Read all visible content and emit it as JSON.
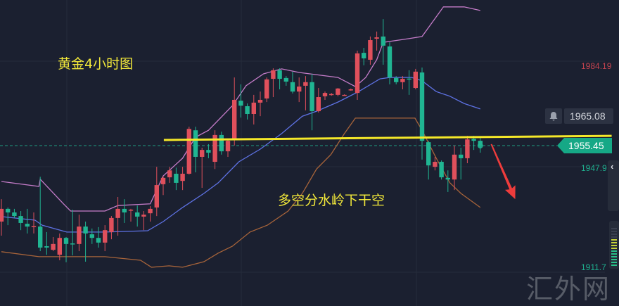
{
  "chart_data": {
    "type": "candlestick",
    "title": "黄金4小时图",
    "annotation_text": "多空分水岭下干空",
    "colors": {
      "up": "#e0505c",
      "down": "#20b592",
      "upper_band": "#c57cc9",
      "middle_band": "#5e72e4",
      "lower_band": "#a8643a",
      "support_line": "#f5e829",
      "arrow": "#ee3c3c",
      "background": "#1b2030"
    },
    "candles": [
      [
        1928.0,
        1936.1,
        1922.9,
        1932.6
      ],
      [
        1932.6,
        1933.1,
        1926.7,
        1931.3
      ],
      [
        1931.3,
        1932.6,
        1929.3,
        1930.0
      ],
      [
        1930.0,
        1931.8,
        1924.9,
        1927.5
      ],
      [
        1927.2,
        1932.6,
        1923.7,
        1926.2
      ],
      [
        1926.2,
        1931.3,
        1923.7,
        1926.4
      ],
      [
        1926.2,
        1944.2,
        1917.3,
        1918.6
      ],
      [
        1919.1,
        1924.2,
        1916.0,
        1918.6
      ],
      [
        1917.8,
        1922.4,
        1917.3,
        1919.9
      ],
      [
        1916.0,
        1923.7,
        1914.0,
        1922.1
      ],
      [
        1922.1,
        1922.4,
        1913.3,
        1919.9
      ],
      [
        1920.1,
        1932.3,
        1915.8,
        1920.0
      ],
      [
        1919.9,
        1930.5,
        1917.3,
        1926.2
      ],
      [
        1926.2,
        1928.0,
        1913.5,
        1923.7
      ],
      [
        1923.4,
        1925.5,
        1919.9,
        1922.1
      ],
      [
        1922.1,
        1926.0,
        1918.6,
        1920.4
      ],
      [
        1920.4,
        1926.7,
        1917.3,
        1924.9
      ],
      [
        1924.2,
        1930.0,
        1921.6,
        1929.3
      ],
      [
        1929.3,
        1936.9,
        1922.9,
        1932.6
      ],
      [
        1932.6,
        1936.1,
        1927.5,
        1931.3
      ],
      [
        1932.0,
        1932.6,
        1928.0,
        1932.3
      ],
      [
        1931.3,
        1933.8,
        1926.2,
        1929.8
      ],
      [
        1929.8,
        1931.8,
        1924.9,
        1930.5
      ],
      [
        1931.0,
        1933.6,
        1928.0,
        1932.6
      ],
      [
        1933.1,
        1947.8,
        1930.0,
        1941.2
      ],
      [
        1941.5,
        1944.5,
        1937.6,
        1943.8
      ],
      [
        1944.0,
        1947.8,
        1942.0,
        1946.5
      ],
      [
        1945.3,
        1947.5,
        1939.4,
        1942.0
      ],
      [
        1942.7,
        1947.8,
        1939.4,
        1945.3
      ],
      [
        1945.3,
        1962.3,
        1945.0,
        1961.5
      ],
      [
        1961.0,
        1962.3,
        1945.8,
        1951.4
      ],
      [
        1951.4,
        1954.7,
        1940.2,
        1953.9
      ],
      [
        1953.9,
        1956.0,
        1950.9,
        1952.9
      ],
      [
        1949.6,
        1961.0,
        1947.0,
        1959.3
      ],
      [
        1959.3,
        1960.5,
        1952.2,
        1953.4
      ],
      [
        1953.4,
        1958.0,
        1951.4,
        1957.2
      ],
      [
        1958.0,
        1980.1,
        1955.5,
        1972.0
      ],
      [
        1971.7,
        1977.6,
        1965.6,
        1969.9
      ],
      [
        1969.7,
        1970.7,
        1964.9,
        1966.9
      ],
      [
        1966.9,
        1973.8,
        1963.1,
        1971.0
      ],
      [
        1971.0,
        1975.0,
        1966.1,
        1972.0
      ],
      [
        1972.5,
        1980.1,
        1971.2,
        1979.4
      ],
      [
        1979.6,
        1983.4,
        1973.0,
        1982.7
      ],
      [
        1982.7,
        1983.4,
        1975.8,
        1979.6
      ],
      [
        1979.9,
        1980.6,
        1977.1,
        1978.6
      ],
      [
        1978.4,
        1982.2,
        1974.3,
        1975.0
      ],
      [
        1975.0,
        1980.1,
        1971.2,
        1976.8
      ],
      [
        1977.1,
        1980.6,
        1968.2,
        1978.4
      ],
      [
        1978.4,
        1981.4,
        1961.0,
        1967.9
      ],
      [
        1967.9,
        1976.3,
        1967.4,
        1973.0
      ],
      [
        1973.3,
        1975.0,
        1972.0,
        1974.5
      ],
      [
        1973.9,
        1974.5,
        1973.5,
        1974.1
      ],
      [
        1973.8,
        1976.3,
        1973.3,
        1976.1
      ],
      [
        1973.8,
        1974.0,
        1973.5,
        1973.8
      ],
      [
        1975.6,
        1976.1,
        1975.3,
        1975.8
      ],
      [
        1974.5,
        1989.8,
        1972.0,
        1988.8
      ],
      [
        1989.0,
        1990.8,
        1984.5,
        1987.0
      ],
      [
        1986.5,
        1994.9,
        1984.7,
        1993.6
      ],
      [
        1994.1,
        1996.7,
        1989.8,
        1994.6
      ],
      [
        1994.9,
        2001.2,
        1984.7,
        1991.6
      ],
      [
        1991.3,
        1992.8,
        1977.6,
        1980.1
      ],
      [
        1979.9,
        1980.6,
        1977.6,
        1978.4
      ],
      [
        1978.4,
        1980.6,
        1975.8,
        1979.6
      ],
      [
        1979.7,
        1982.7,
        1973.8,
        1979.6
      ],
      [
        1976.3,
        1983.2,
        1975.8,
        1982.2
      ],
      [
        1981.9,
        1983.7,
        1950.4,
        1957.2
      ],
      [
        1956.7,
        1957.2,
        1943.2,
        1948.3
      ],
      [
        1947.8,
        1951.4,
        1946.5,
        1949.6
      ],
      [
        1949.6,
        1950.1,
        1943.2,
        1944.0
      ],
      [
        1943.8,
        1946.5,
        1938.7,
        1943.2
      ],
      [
        1943.2,
        1955.5,
        1939.4,
        1952.2
      ],
      [
        1952.2,
        1954.7,
        1943.2,
        1950.9
      ],
      [
        1950.9,
        1959.0,
        1949.1,
        1957.7
      ],
      [
        1957.9,
        1959.0,
        1953.9,
        1957.2
      ],
      [
        1957.2,
        1958.2,
        1952.9,
        1955.45
      ]
    ],
    "bands": {
      "upper": [
        [
          1,
          1942.5
        ],
        [
          6.8,
          1940.7
        ],
        [
          7,
          1943.3
        ],
        [
          10.6,
          1934.4
        ],
        [
          11.7,
          1931.8
        ],
        [
          17,
          1931.8
        ],
        [
          19,
          1933.8
        ],
        [
          24,
          1934.4
        ],
        [
          26,
          1944.5
        ],
        [
          29,
          1950.9
        ],
        [
          31,
          1958.5
        ],
        [
          33,
          1961.0
        ],
        [
          36.7,
          1969.9
        ],
        [
          38.8,
          1977.1
        ],
        [
          41.5,
          1981.4
        ],
        [
          44.3,
          1983.2
        ],
        [
          47,
          1981.9
        ],
        [
          53,
          1980.1
        ],
        [
          55.7,
          1976.8
        ],
        [
          57.3,
          1980.1
        ],
        [
          59,
          1986.5
        ],
        [
          60,
          1992.8
        ],
        [
          63.8,
          1994.1
        ],
        [
          66,
          1994.9
        ],
        [
          69.3,
          2005.6
        ],
        [
          72.5,
          2005.6
        ],
        [
          75,
          2004.3
        ]
      ],
      "middle": [
        [
          1,
          1929.8
        ],
        [
          6.2,
          1928.5
        ],
        [
          7.3,
          1926.7
        ],
        [
          11.1,
          1924.2
        ],
        [
          17,
          1924.2
        ],
        [
          23.6,
          1924.7
        ],
        [
          26,
          1928.0
        ],
        [
          29,
          1933.1
        ],
        [
          32.3,
          1938.2
        ],
        [
          34.5,
          1942.0
        ],
        [
          37.7,
          1949.6
        ],
        [
          41,
          1954.2
        ],
        [
          44.3,
          1959.8
        ],
        [
          47.5,
          1966.1
        ],
        [
          49.7,
          1967.9
        ],
        [
          53,
          1971.2
        ],
        [
          56.2,
          1975.0
        ],
        [
          59.5,
          1979.6
        ],
        [
          61,
          1980.1
        ],
        [
          64.4,
          1980.1
        ],
        [
          66,
          1978.9
        ],
        [
          68.2,
          1975.0
        ],
        [
          70.3,
          1973.3
        ],
        [
          72.5,
          1970.7
        ],
        [
          75,
          1968.7
        ]
      ],
      "lower": [
        [
          1,
          1917.1
        ],
        [
          6.8,
          1915.3
        ],
        [
          17,
          1915.3
        ],
        [
          22.5,
          1914.0
        ],
        [
          24.2,
          1911.5
        ],
        [
          26.9,
          1912.0
        ],
        [
          29,
          1911.5
        ],
        [
          32.3,
          1913.5
        ],
        [
          34.5,
          1916.6
        ],
        [
          36.7,
          1919.1
        ],
        [
          39.4,
          1924.2
        ],
        [
          42.1,
          1926.7
        ],
        [
          45.3,
          1931.8
        ],
        [
          47.5,
          1938.2
        ],
        [
          49.7,
          1947.0
        ],
        [
          51.9,
          1952.2
        ],
        [
          54,
          1959.8
        ],
        [
          55.7,
          1965.4
        ],
        [
          59.5,
          1965.4
        ],
        [
          64.9,
          1965.4
        ],
        [
          66,
          1961.0
        ],
        [
          68.2,
          1950.9
        ],
        [
          70.3,
          1942.0
        ],
        [
          72,
          1938.2
        ],
        [
          75,
          1933.1
        ]
      ]
    },
    "support_line": {
      "from": [
        26.1,
        1957.5
      ],
      "to": [
        95.3,
        1959.0
      ]
    },
    "arrow": {
      "from": [
        76.7,
        1956.0
      ],
      "to": [
        80.4,
        1936.1
      ]
    },
    "last_price": 1955.45,
    "y_labels": {
      "high": "1984.19",
      "alert": "1965.08",
      "last": "1955.45",
      "mid": "1947.9",
      "low": "1911.7"
    },
    "grid": true
  },
  "icons": {
    "alert": "bell-icon",
    "collapse": "chevron-left-icon"
  },
  "watermark": "汇外网"
}
